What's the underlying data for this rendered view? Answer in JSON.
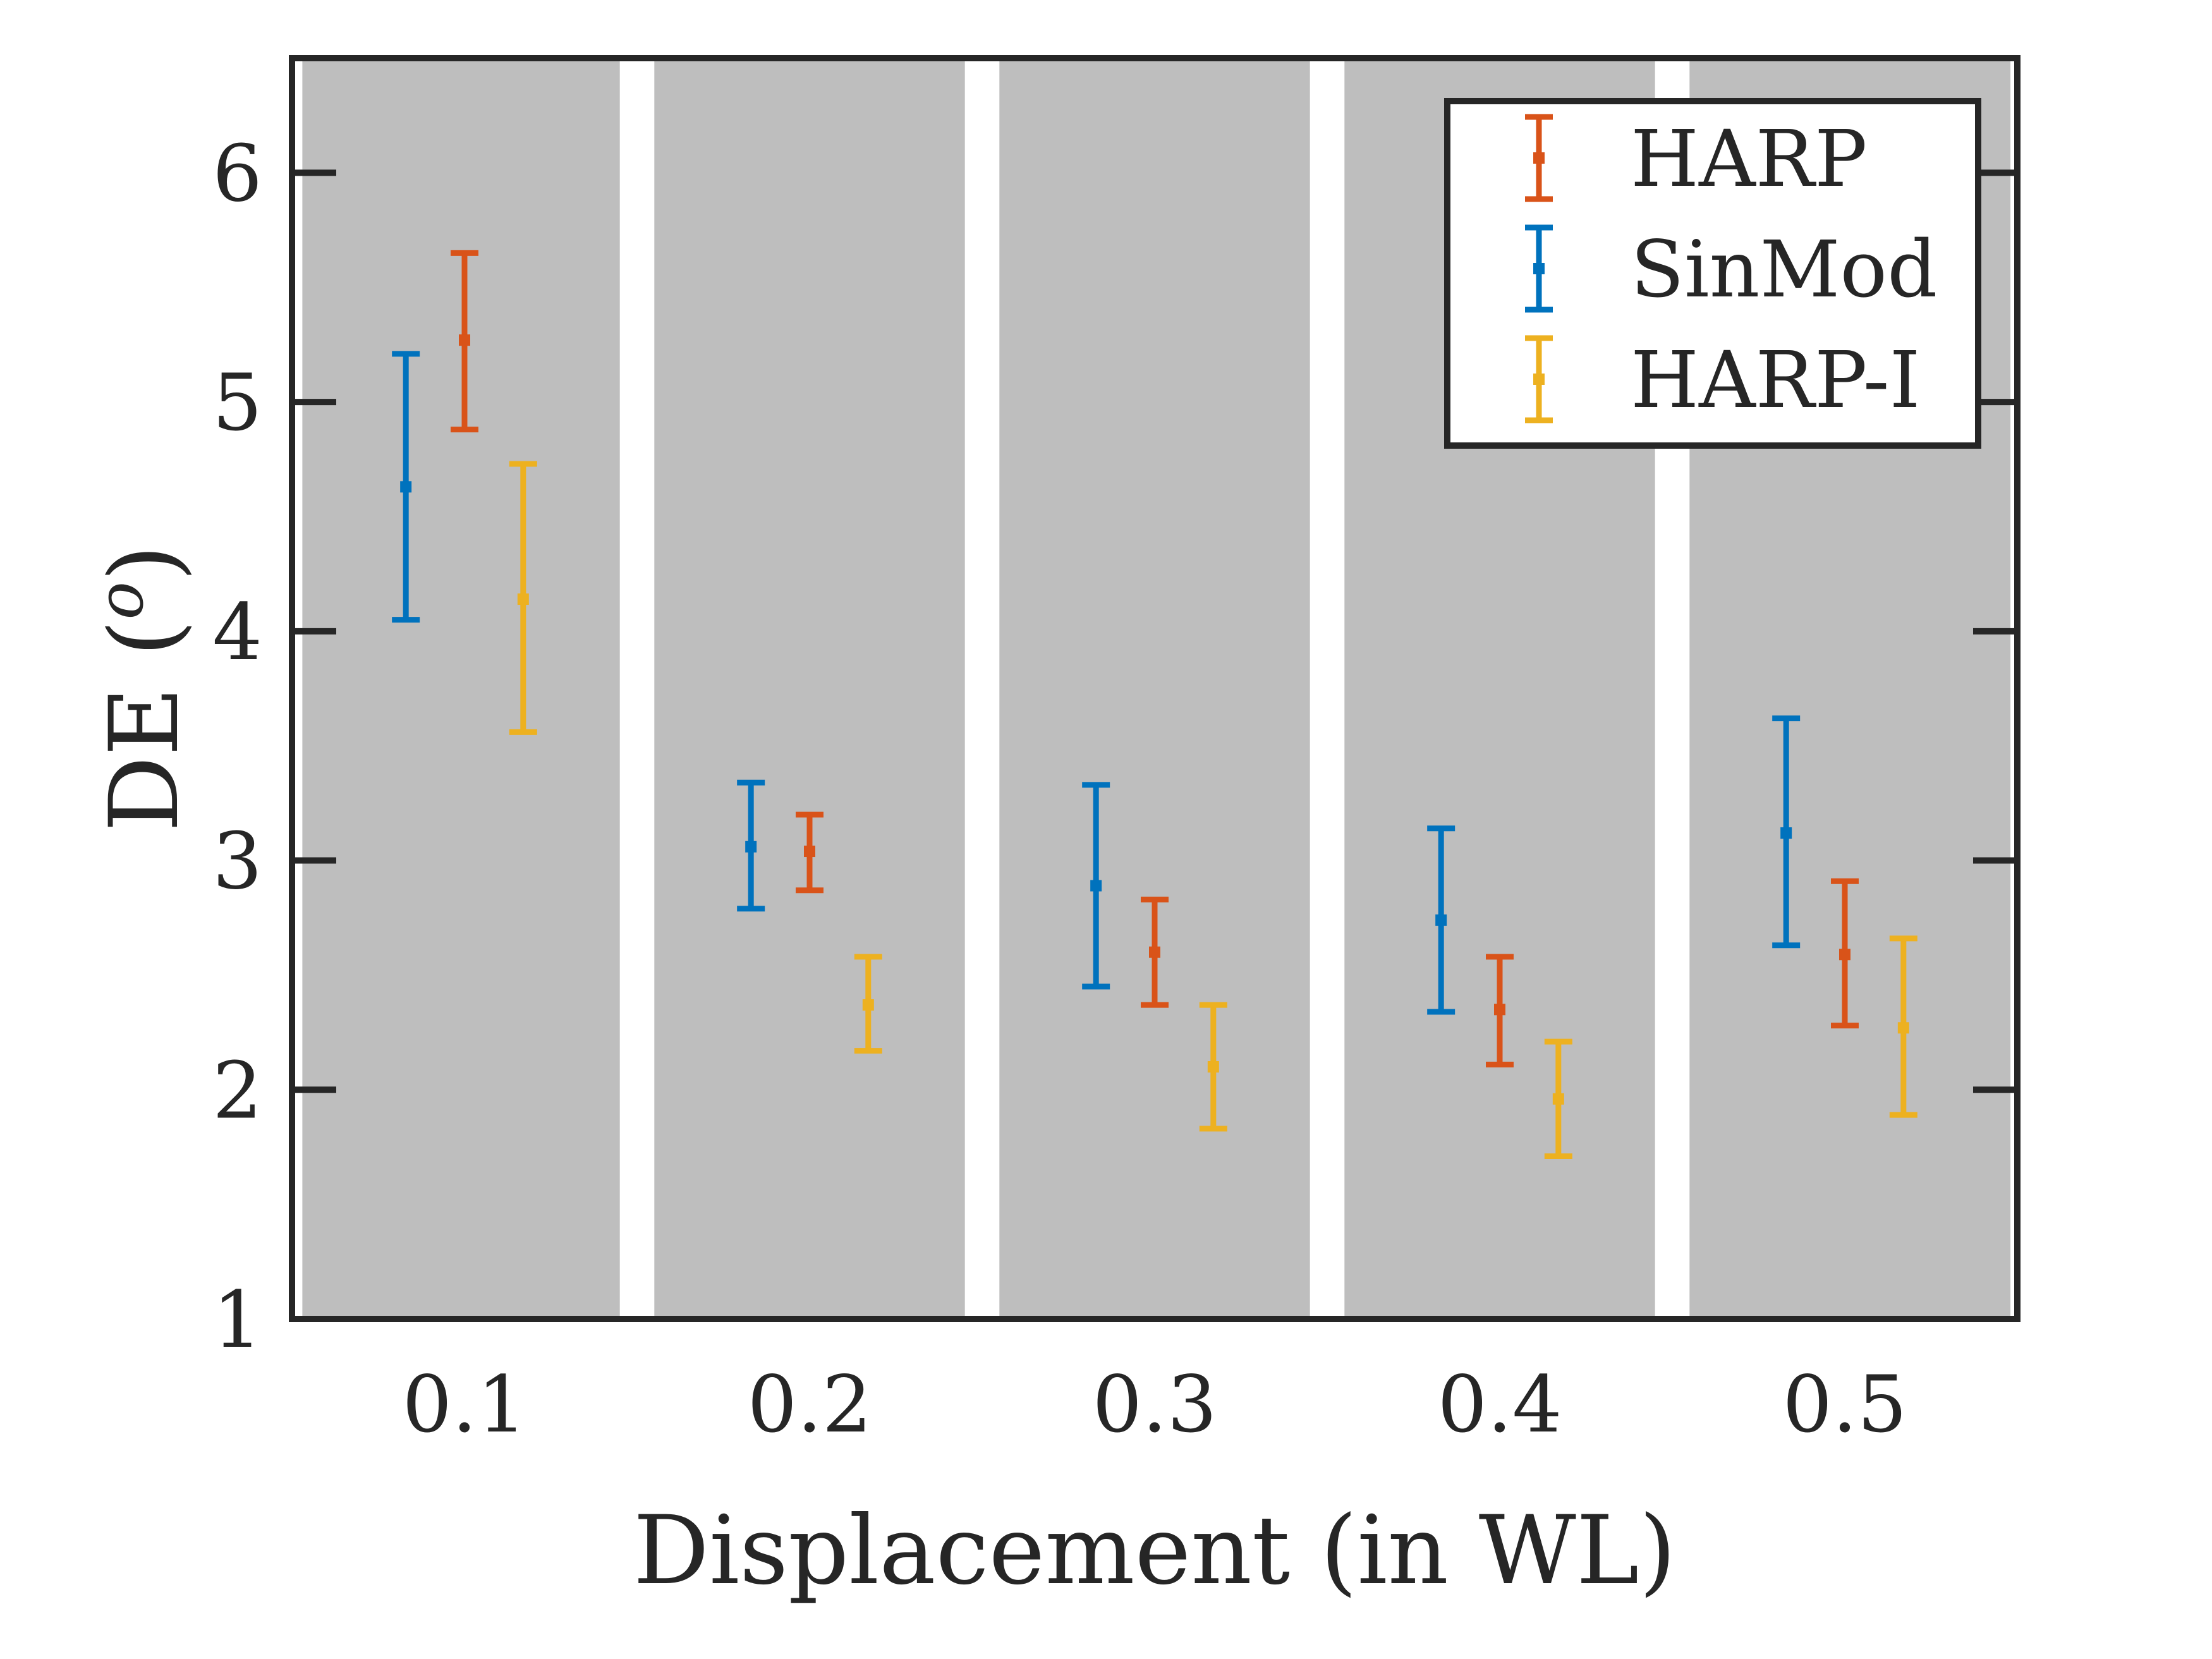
{
  "chart_data": {
    "type": "errorbar",
    "xlabel": "Displacement (in WL)",
    "ylabel": "DE (",
    "ylabel_sup": "o",
    "ylabel_close": ")",
    "xlim": [
      0.05,
      0.55
    ],
    "ylim": [
      1,
      6.5
    ],
    "xticks": [
      0.1,
      0.2,
      0.3,
      0.4,
      0.5
    ],
    "xtick_labels": [
      "0.1",
      "0.2",
      "0.3",
      "0.4",
      "0.5"
    ],
    "yticks": [
      1,
      2,
      3,
      4,
      5,
      6
    ],
    "ytick_labels": [
      "1",
      "2",
      "3",
      "4",
      "5",
      "6"
    ],
    "grid": false,
    "background_bands": {
      "color": "#bebebe",
      "intervals": [
        [
          0.053,
          0.145
        ],
        [
          0.155,
          0.245
        ],
        [
          0.255,
          0.345
        ],
        [
          0.355,
          0.445
        ],
        [
          0.455,
          0.548
        ]
      ]
    },
    "legend": {
      "position": "top-right"
    },
    "series": [
      {
        "name": "HARP",
        "color": "#d95319",
        "x": [
          0.1,
          0.2,
          0.3,
          0.4,
          0.5
        ],
        "y": [
          5.27,
          3.04,
          2.6,
          2.35,
          2.59
        ],
        "lower": [
          4.88,
          2.87,
          2.37,
          2.11,
          2.28
        ],
        "upper": [
          5.65,
          3.2,
          2.83,
          2.58,
          2.91
        ]
      },
      {
        "name": "SinMod",
        "color": "#0072bd",
        "x": [
          0.083,
          0.183,
          0.283,
          0.383,
          0.483
        ],
        "y": [
          4.63,
          3.06,
          2.89,
          2.74,
          3.12
        ],
        "lower": [
          4.05,
          2.79,
          2.45,
          2.34,
          2.63
        ],
        "upper": [
          5.21,
          3.34,
          3.33,
          3.14,
          3.62
        ]
      },
      {
        "name": "HARP-I",
        "color": "#edb120",
        "x": [
          0.117,
          0.217,
          0.317,
          0.417,
          0.517
        ],
        "y": [
          4.14,
          2.37,
          2.1,
          1.96,
          2.27
        ],
        "lower": [
          3.56,
          2.17,
          1.83,
          1.71,
          1.89
        ],
        "upper": [
          4.73,
          2.58,
          2.37,
          2.21,
          2.66
        ]
      }
    ]
  }
}
